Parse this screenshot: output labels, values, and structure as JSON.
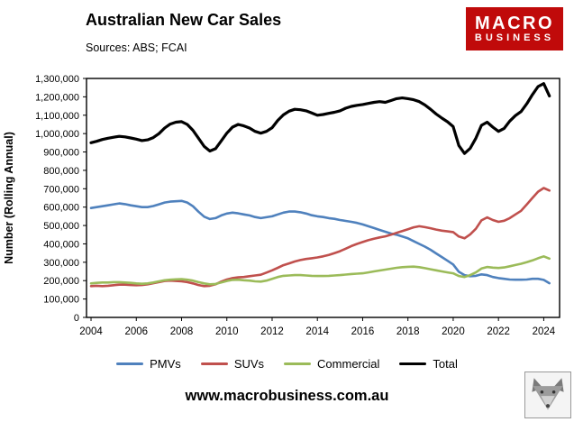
{
  "title": "Australian New Car Sales",
  "sources": "Sources: ABS; FCAI",
  "logo": {
    "line1": "MACRO",
    "line2": "BUSINESS",
    "bg_color": "#c00a0a",
    "text_color": "#ffffff"
  },
  "footer": {
    "url": "www.macrobusiness.com.au"
  },
  "chart_data": {
    "type": "line",
    "title": "Australian New Car Sales",
    "xlabel": "",
    "ylabel": "Number (Rolling Annual)",
    "ylim": [
      0,
      1300000
    ],
    "ytick_step": 100000,
    "xticks": [
      2004,
      2006,
      2008,
      2010,
      2012,
      2014,
      2016,
      2018,
      2020,
      2022,
      2024
    ],
    "grid": false,
    "legend_position": "bottom",
    "x": [
      2004,
      2004.25,
      2004.5,
      2004.75,
      2005,
      2005.25,
      2005.5,
      2005.75,
      2006,
      2006.25,
      2006.5,
      2006.75,
      2007,
      2007.25,
      2007.5,
      2007.75,
      2008,
      2008.25,
      2008.5,
      2008.75,
      2009,
      2009.25,
      2009.5,
      2009.75,
      2010,
      2010.25,
      2010.5,
      2010.75,
      2011,
      2011.25,
      2011.5,
      2011.75,
      2012,
      2012.25,
      2012.5,
      2012.75,
      2013,
      2013.25,
      2013.5,
      2013.75,
      2014,
      2014.25,
      2014.5,
      2014.75,
      2015,
      2015.25,
      2015.5,
      2015.75,
      2016,
      2016.25,
      2016.5,
      2016.75,
      2017,
      2017.25,
      2017.5,
      2017.75,
      2018,
      2018.25,
      2018.5,
      2018.75,
      2019,
      2019.25,
      2019.5,
      2019.75,
      2020,
      2020.25,
      2020.5,
      2020.75,
      2021,
      2021.25,
      2021.5,
      2021.75,
      2022,
      2022.25,
      2022.5,
      2022.75,
      2023,
      2023.25,
      2023.5,
      2023.75,
      2024,
      2024.25
    ],
    "series": [
      {
        "name": "PMVs",
        "color": "#4F81BD",
        "values": [
          595000,
          600000,
          605000,
          610000,
          615000,
          620000,
          616000,
          610000,
          605000,
          600000,
          600000,
          606000,
          615000,
          625000,
          630000,
          632000,
          634000,
          625000,
          605000,
          575000,
          548000,
          535000,
          540000,
          555000,
          565000,
          570000,
          566000,
          560000,
          555000,
          546000,
          540000,
          545000,
          550000,
          560000,
          570000,
          576000,
          576000,
          572000,
          565000,
          556000,
          550000,
          546000,
          540000,
          536000,
          530000,
          525000,
          520000,
          514000,
          506000,
          496000,
          486000,
          476000,
          466000,
          456000,
          450000,
          440000,
          430000,
          415000,
          400000,
          385000,
          368000,
          348000,
          328000,
          308000,
          288000,
          248000,
          230000,
          224000,
          226000,
          234000,
          230000,
          220000,
          214000,
          210000,
          206000,
          205000,
          205000,
          206000,
          210000,
          210000,
          204000,
          186000
        ]
      },
      {
        "name": "SUVs",
        "color": "#C0504D",
        "values": [
          170000,
          172000,
          170000,
          172000,
          175000,
          178000,
          178000,
          176000,
          175000,
          176000,
          180000,
          186000,
          192000,
          198000,
          200000,
          198000,
          196000,
          192000,
          185000,
          176000,
          170000,
          172000,
          180000,
          195000,
          206000,
          214000,
          218000,
          220000,
          224000,
          228000,
          232000,
          244000,
          256000,
          270000,
          284000,
          294000,
          304000,
          312000,
          318000,
          322000,
          326000,
          332000,
          340000,
          350000,
          360000,
          374000,
          388000,
          400000,
          410000,
          420000,
          428000,
          435000,
          441000,
          450000,
          460000,
          470000,
          480000,
          490000,
          496000,
          491000,
          485000,
          478000,
          472000,
          468000,
          464000,
          440000,
          430000,
          452000,
          482000,
          528000,
          544000,
          530000,
          520000,
          526000,
          540000,
          560000,
          580000,
          614000,
          650000,
          684000,
          704000,
          690000
        ]
      },
      {
        "name": "Commercial",
        "color": "#9BBB59",
        "values": [
          185000,
          188000,
          190000,
          190000,
          192000,
          192000,
          190000,
          188000,
          185000,
          183000,
          185000,
          190000,
          196000,
          202000,
          205000,
          207000,
          208000,
          205000,
          200000,
          192000,
          185000,
          180000,
          182000,
          190000,
          198000,
          204000,
          205000,
          202000,
          200000,
          196000,
          195000,
          200000,
          210000,
          220000,
          226000,
          228000,
          230000,
          230000,
          228000,
          226000,
          225000,
          225000,
          226000,
          228000,
          230000,
          233000,
          236000,
          238000,
          240000,
          245000,
          250000,
          255000,
          260000,
          265000,
          270000,
          273000,
          275000,
          276000,
          273000,
          268000,
          262000,
          256000,
          250000,
          245000,
          240000,
          225000,
          220000,
          230000,
          245000,
          266000,
          274000,
          271000,
          269000,
          272000,
          278000,
          285000,
          292000,
          300000,
          310000,
          322000,
          332000,
          320000
        ]
      },
      {
        "name": "Total",
        "color": "#000000",
        "values": [
          950000,
          958000,
          968000,
          975000,
          980000,
          985000,
          982000,
          976000,
          970000,
          962000,
          966000,
          978000,
          1000000,
          1030000,
          1052000,
          1062000,
          1065000,
          1050000,
          1018000,
          975000,
          930000,
          905000,
          918000,
          960000,
          1002000,
          1035000,
          1050000,
          1042000,
          1030000,
          1012000,
          1002000,
          1012000,
          1032000,
          1072000,
          1102000,
          1122000,
          1132000,
          1130000,
          1124000,
          1112000,
          1100000,
          1104000,
          1110000,
          1116000,
          1124000,
          1138000,
          1148000,
          1154000,
          1158000,
          1164000,
          1170000,
          1174000,
          1170000,
          1180000,
          1190000,
          1194000,
          1190000,
          1184000,
          1174000,
          1156000,
          1132000,
          1106000,
          1084000,
          1064000,
          1038000,
          935000,
          892000,
          920000,
          975000,
          1045000,
          1062000,
          1035000,
          1012000,
          1028000,
          1068000,
          1098000,
          1120000,
          1162000,
          1212000,
          1256000,
          1272000,
          1205000
        ]
      }
    ]
  }
}
